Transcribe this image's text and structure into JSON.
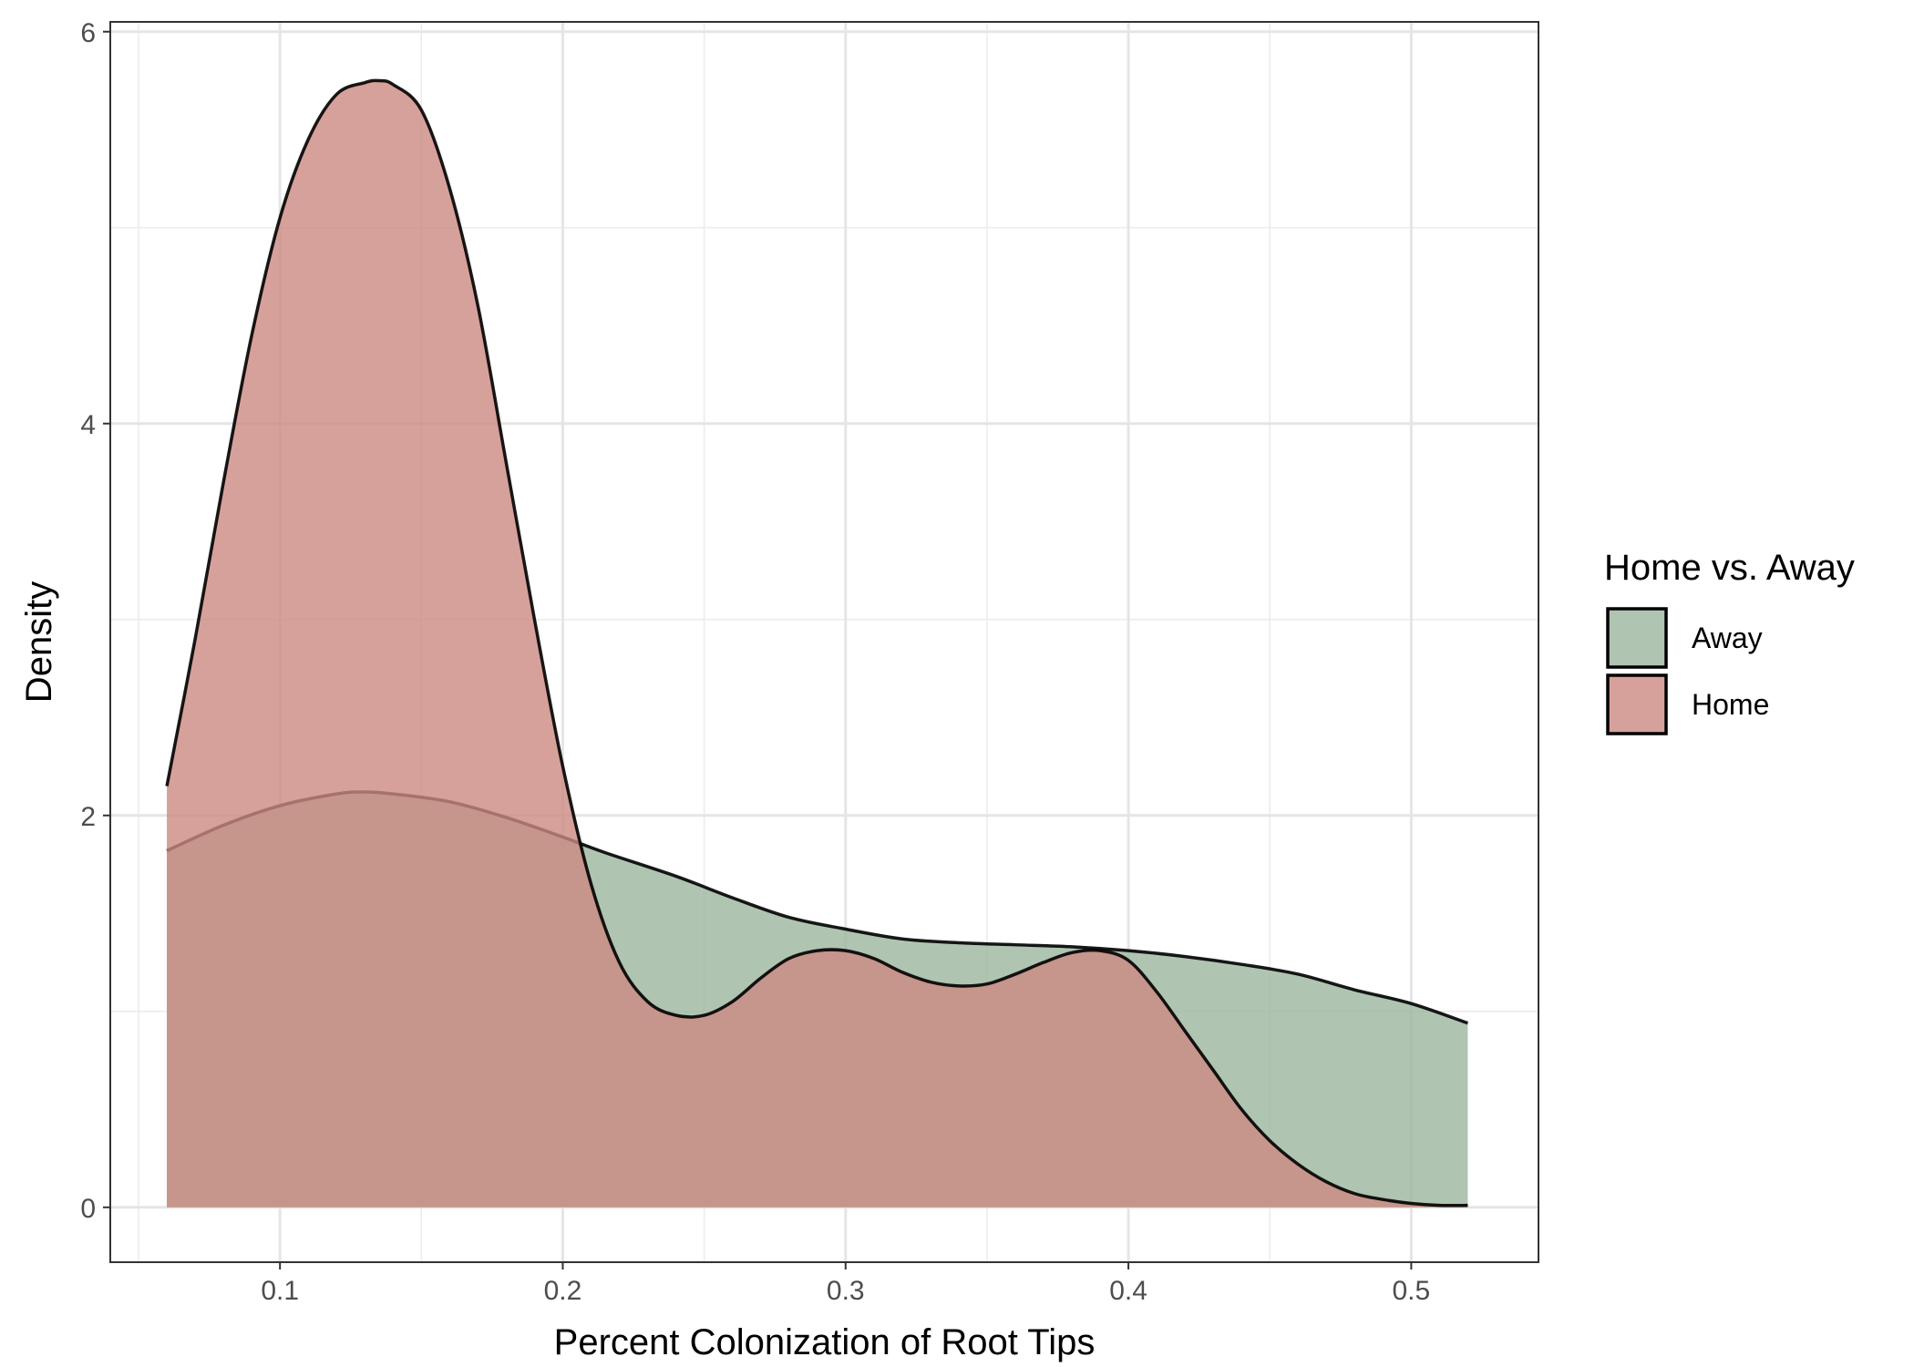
{
  "chart_data": {
    "type": "area",
    "title": "",
    "xlabel": "Percent Colonization of Root Tips",
    "ylabel": "Density",
    "xlim": [
      0.04,
      0.545
    ],
    "ylim": [
      -0.28,
      6.05
    ],
    "x_ticks": [
      0.1,
      0.2,
      0.3,
      0.4,
      0.5
    ],
    "x_tick_labels": [
      "0.1",
      "0.2",
      "0.3",
      "0.4",
      "0.5"
    ],
    "y_ticks": [
      0,
      2,
      4,
      6
    ],
    "y_tick_labels": [
      "0",
      "2",
      "4",
      "6"
    ],
    "grid": true,
    "legend": {
      "title": "Home vs. Away",
      "position": "right"
    },
    "series": [
      {
        "name": "Away",
        "color": "#9bb59d",
        "x": [
          0.06,
          0.08,
          0.1,
          0.12,
          0.13,
          0.14,
          0.16,
          0.18,
          0.2,
          0.215,
          0.24,
          0.26,
          0.28,
          0.3,
          0.32,
          0.34,
          0.36,
          0.38,
          0.4,
          0.42,
          0.44,
          0.46,
          0.48,
          0.5,
          0.52
        ],
        "values": [
          1.82,
          1.95,
          2.05,
          2.11,
          2.12,
          2.11,
          2.07,
          1.99,
          1.89,
          1.81,
          1.69,
          1.58,
          1.48,
          1.42,
          1.37,
          1.35,
          1.34,
          1.33,
          1.31,
          1.28,
          1.24,
          1.19,
          1.11,
          1.04,
          0.94
        ]
      },
      {
        "name": "Home",
        "color": "#cc8a82",
        "x": [
          0.06,
          0.07,
          0.08,
          0.09,
          0.1,
          0.11,
          0.12,
          0.13,
          0.135,
          0.14,
          0.15,
          0.16,
          0.17,
          0.18,
          0.19,
          0.2,
          0.21,
          0.22,
          0.23,
          0.24,
          0.25,
          0.26,
          0.27,
          0.28,
          0.29,
          0.3,
          0.31,
          0.32,
          0.33,
          0.34,
          0.35,
          0.36,
          0.37,
          0.38,
          0.39,
          0.4,
          0.41,
          0.42,
          0.43,
          0.44,
          0.45,
          0.46,
          0.47,
          0.48,
          0.49,
          0.5,
          0.51,
          0.52
        ],
        "values": [
          2.15,
          2.9,
          3.7,
          4.45,
          5.05,
          5.45,
          5.68,
          5.74,
          5.75,
          5.73,
          5.6,
          5.2,
          4.6,
          3.8,
          3.0,
          2.25,
          1.65,
          1.25,
          1.05,
          0.98,
          0.98,
          1.05,
          1.17,
          1.27,
          1.31,
          1.31,
          1.27,
          1.2,
          1.15,
          1.13,
          1.14,
          1.19,
          1.25,
          1.3,
          1.31,
          1.26,
          1.1,
          0.9,
          0.7,
          0.5,
          0.34,
          0.22,
          0.13,
          0.07,
          0.04,
          0.02,
          0.01,
          0.01
        ]
      }
    ]
  }
}
